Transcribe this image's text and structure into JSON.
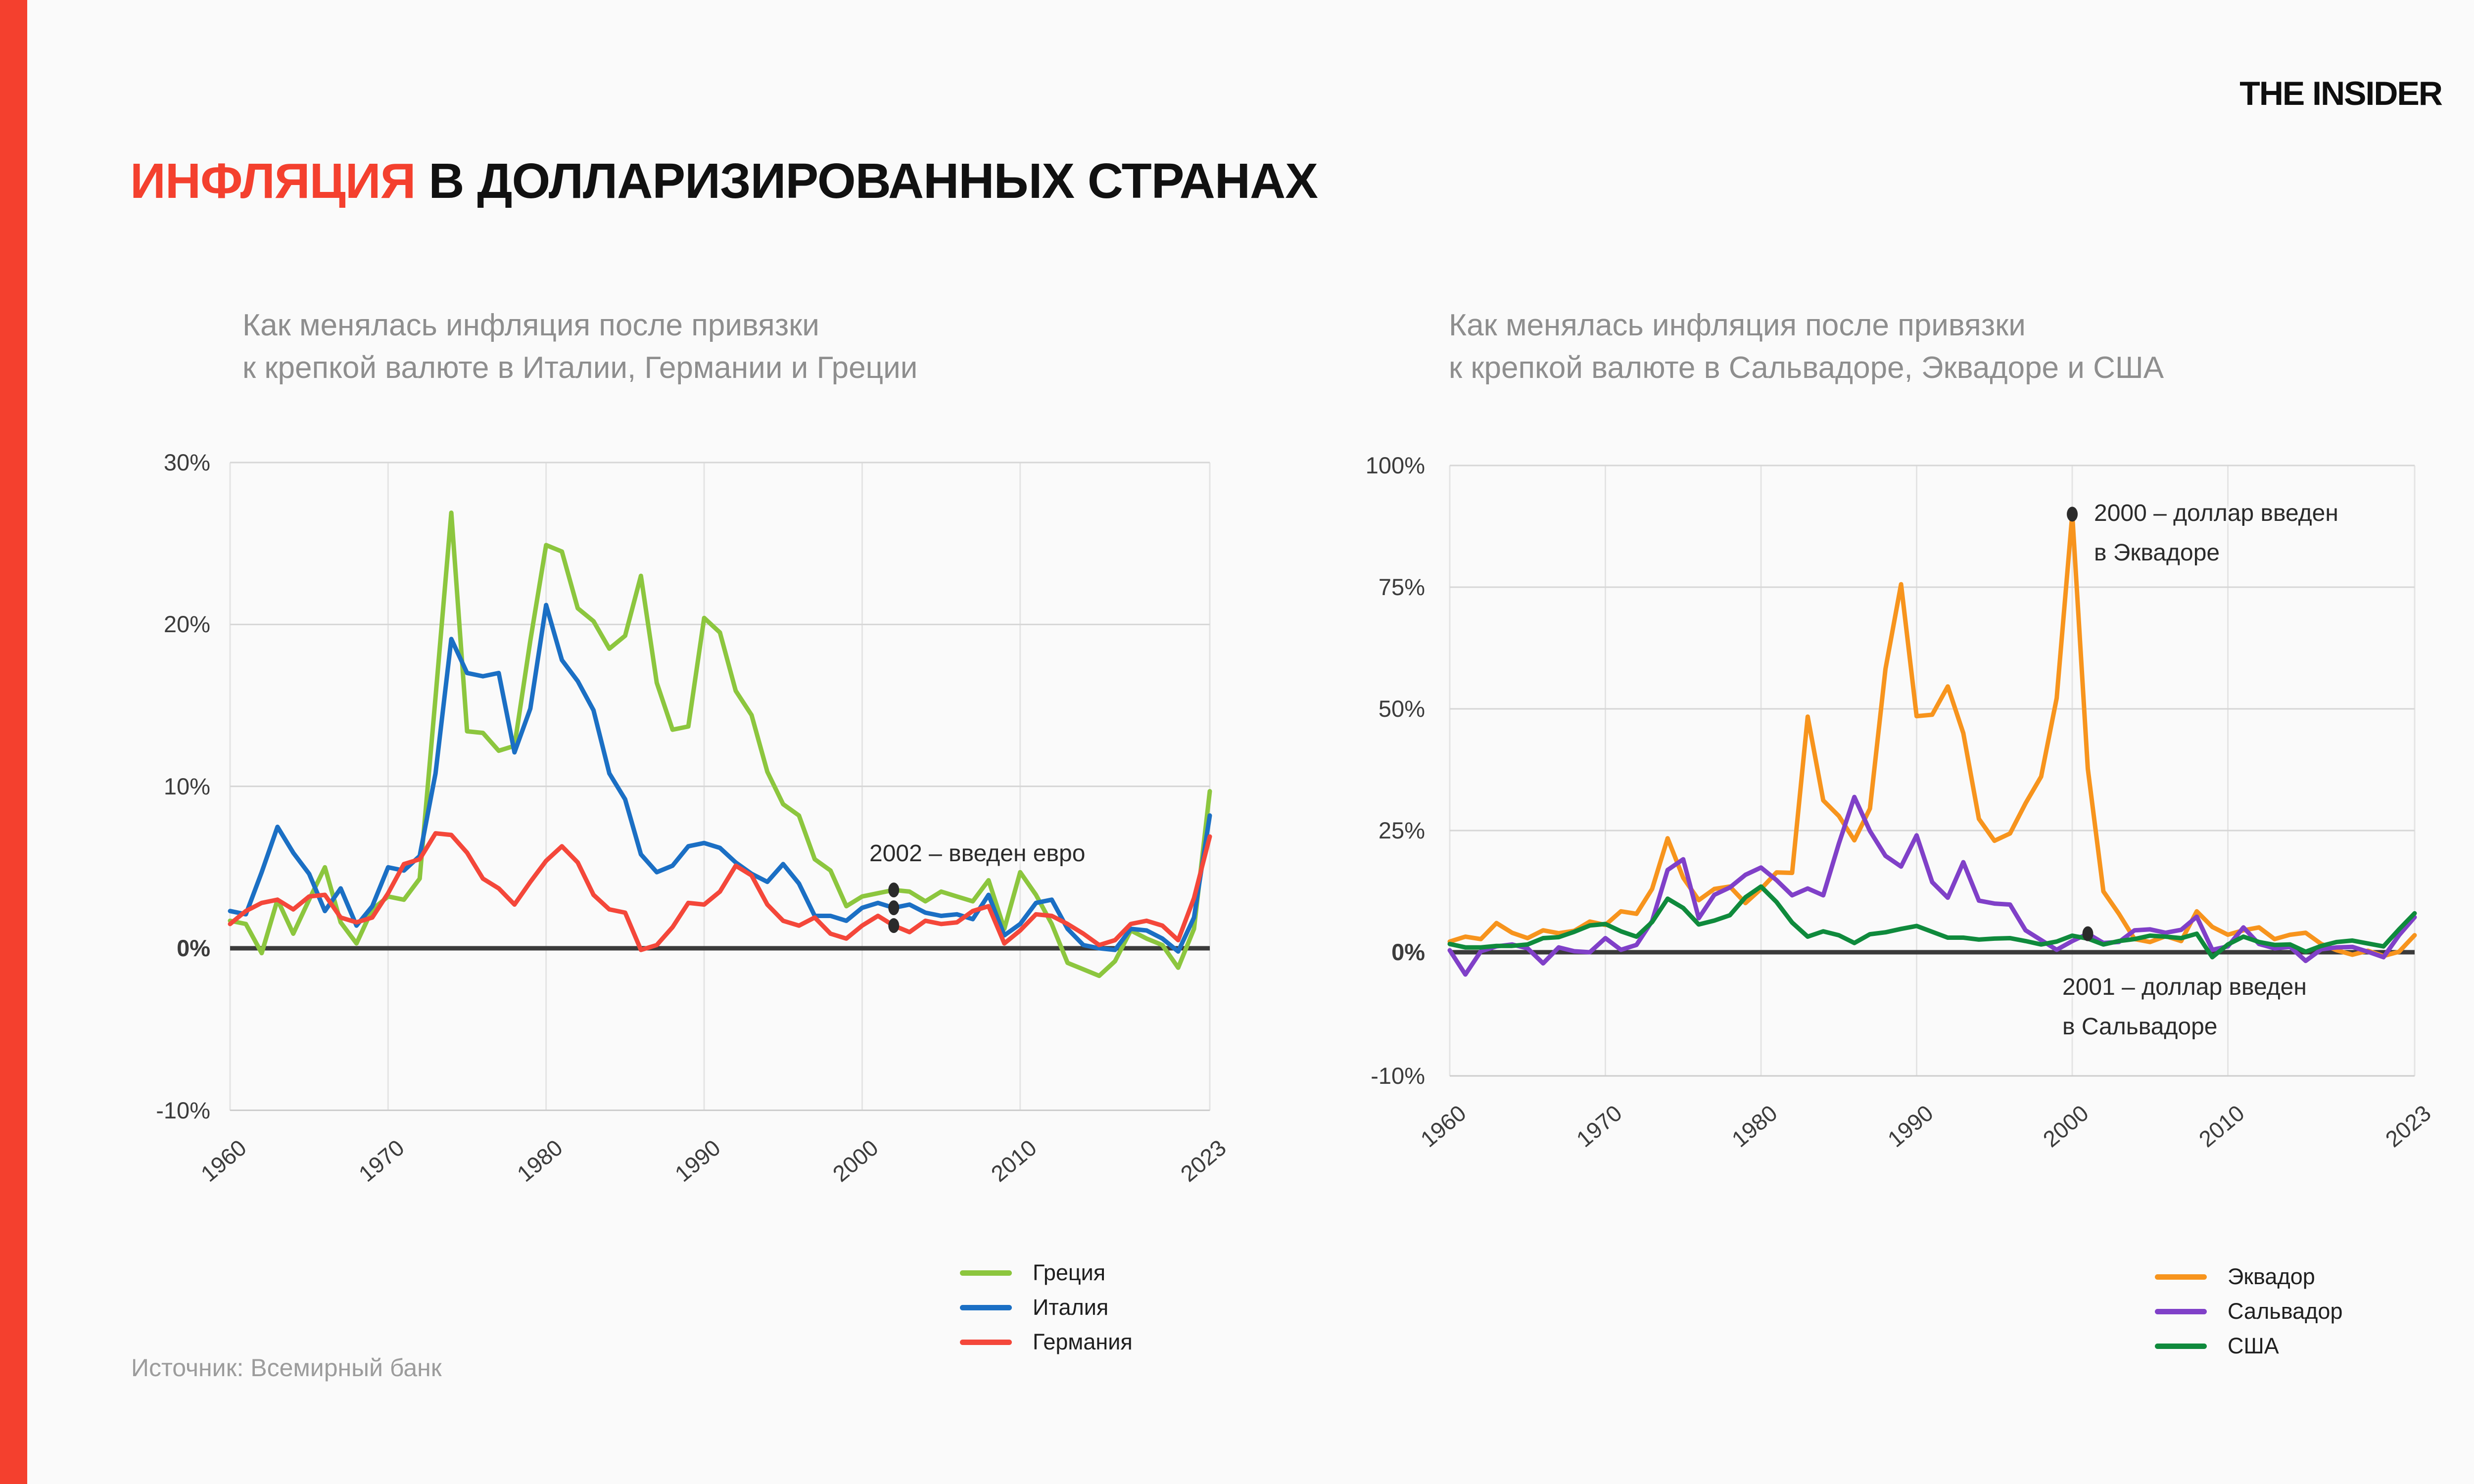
{
  "header": {
    "logo": "THE INSIDER",
    "title_highlight": "ИНФЛЯЦИЯ",
    "title_rest": "В ДОЛЛАРИЗИРОВАННЫХ СТРАНАХ",
    "accent_color": "#F4402E"
  },
  "source": "Источник: Всемирный банк",
  "chart_data": [
    {
      "type": "line",
      "subtitle_line1": "Как менялась инфляция после привязки",
      "subtitle_line2": "к крепкой валюте в Италии, Германии и Греции",
      "unit": "%",
      "ylim": [
        -10,
        30
      ],
      "grid": true,
      "legend_position": "bottom",
      "years": [
        1960,
        1961,
        1962,
        1963,
        1964,
        1965,
        1966,
        1967,
        1968,
        1969,
        1970,
        1971,
        1972,
        1973,
        1974,
        1975,
        1976,
        1977,
        1978,
        1979,
        1980,
        1981,
        1982,
        1983,
        1984,
        1985,
        1986,
        1987,
        1988,
        1989,
        1990,
        1991,
        1992,
        1993,
        1994,
        1995,
        1996,
        1997,
        1998,
        1999,
        2000,
        2001,
        2002,
        2003,
        2004,
        2005,
        2006,
        2007,
        2008,
        2009,
        2010,
        2011,
        2012,
        2013,
        2014,
        2015,
        2016,
        2017,
        2018,
        2019,
        2020,
        2021,
        2022
      ],
      "x_ticks": [
        {
          "label": "1960",
          "year": 1960
        },
        {
          "label": "1970",
          "year": 1970
        },
        {
          "label": "1980",
          "year": 1980
        },
        {
          "label": "1990",
          "year": 1990
        },
        {
          "label": "2000",
          "year": 2000
        },
        {
          "label": "2010",
          "year": 2010
        },
        {
          "label": "2023",
          "year": 2023
        }
      ],
      "y_ticks": [
        {
          "label": "30%",
          "value": 30
        },
        {
          "label": "20%",
          "value": 20
        },
        {
          "label": "10%",
          "value": 10
        },
        {
          "label": "0%",
          "value": 0
        },
        {
          "label": "-10%",
          "value": -10
        }
      ],
      "series": [
        {
          "name": "Греция",
          "color": "#8CC63E",
          "values": [
            1.7,
            1.5,
            -0.3,
            3.0,
            0.9,
            3.0,
            5.0,
            1.6,
            0.3,
            2.4,
            3.2,
            3.0,
            4.3,
            15.5,
            26.9,
            13.4,
            13.3,
            12.2,
            12.5,
            19.0,
            24.9,
            24.5,
            21.0,
            20.2,
            18.5,
            19.3,
            23.0,
            16.4,
            13.5,
            13.7,
            20.4,
            19.5,
            15.9,
            14.4,
            10.9,
            8.9,
            8.2,
            5.5,
            4.8,
            2.6,
            3.2,
            3.4,
            3.6,
            3.5,
            2.9,
            3.5,
            3.2,
            2.9,
            4.2,
            1.2,
            4.7,
            3.3,
            1.5,
            -0.9,
            -1.3,
            -1.7,
            -0.8,
            1.1,
            0.6,
            0.2,
            -1.2,
            1.2,
            9.7
          ]
        },
        {
          "name": "Италия",
          "color": "#1B6FC4",
          "values": [
            2.3,
            2.1,
            4.7,
            7.5,
            5.9,
            4.6,
            2.3,
            3.7,
            1.4,
            2.6,
            5.0,
            4.8,
            5.7,
            10.8,
            19.1,
            17.0,
            16.8,
            17.0,
            12.1,
            14.8,
            21.2,
            17.8,
            16.5,
            14.7,
            10.8,
            9.2,
            5.8,
            4.7,
            5.1,
            6.3,
            6.5,
            6.2,
            5.3,
            4.6,
            4.1,
            5.2,
            4.0,
            2.0,
            2.0,
            1.7,
            2.5,
            2.8,
            2.5,
            2.7,
            2.2,
            2.0,
            2.1,
            1.8,
            3.3,
            0.8,
            1.5,
            2.8,
            3.0,
            1.2,
            0.2,
            0.0,
            -0.1,
            1.2,
            1.1,
            0.6,
            -0.2,
            1.9,
            8.2
          ]
        },
        {
          "name": "Германия",
          "color": "#F4473A",
          "values": [
            1.5,
            2.3,
            2.8,
            3.0,
            2.4,
            3.2,
            3.3,
            1.9,
            1.6,
            1.9,
            3.4,
            5.2,
            5.5,
            7.1,
            7.0,
            5.9,
            4.3,
            3.7,
            2.7,
            4.1,
            5.4,
            6.3,
            5.3,
            3.3,
            2.4,
            2.2,
            -0.1,
            0.2,
            1.3,
            2.8,
            2.7,
            3.5,
            5.1,
            4.5,
            2.7,
            1.7,
            1.4,
            1.9,
            0.9,
            0.6,
            1.4,
            2.0,
            1.4,
            1.0,
            1.7,
            1.5,
            1.6,
            2.3,
            2.6,
            0.3,
            1.1,
            2.1,
            2.0,
            1.5,
            0.9,
            0.2,
            0.5,
            1.5,
            1.7,
            1.4,
            0.5,
            3.1,
            6.9
          ]
        }
      ],
      "annotations": [
        {
          "line1": "2002 – введен евро",
          "line2": "",
          "dots": [
            {
              "year": 2002,
              "value": 3.6
            },
            {
              "year": 2002,
              "value": 2.5
            },
            {
              "year": 2002,
              "value": 1.4
            }
          ]
        }
      ]
    },
    {
      "type": "line",
      "subtitle_line1": "Как менялась инфляция после привязки",
      "subtitle_line2": "к крепкой валюте в Сальвадоре, Эквадоре и США",
      "unit": "%",
      "ylim": [
        -10,
        100
      ],
      "grid": true,
      "legend_position": "bottom",
      "years": [
        1960,
        1961,
        1962,
        1963,
        1964,
        1965,
        1966,
        1967,
        1968,
        1969,
        1970,
        1971,
        1972,
        1973,
        1974,
        1975,
        1976,
        1977,
        1978,
        1979,
        1980,
        1981,
        1982,
        1983,
        1984,
        1985,
        1986,
        1987,
        1988,
        1989,
        1990,
        1991,
        1992,
        1993,
        1994,
        1995,
        1996,
        1997,
        1998,
        1999,
        2000,
        2001,
        2002,
        2003,
        2004,
        2005,
        2006,
        2007,
        2008,
        2009,
        2010,
        2011,
        2012,
        2013,
        2014,
        2015,
        2016,
        2017,
        2018,
        2019,
        2020,
        2021,
        2022
      ],
      "x_ticks": [
        {
          "label": "1960",
          "year": 1960
        },
        {
          "label": "1970",
          "year": 1970
        },
        {
          "label": "1980",
          "year": 1980
        },
        {
          "label": "1990",
          "year": 1990
        },
        {
          "label": "2000",
          "year": 2000
        },
        {
          "label": "2010",
          "year": 2010
        },
        {
          "label": "2023",
          "year": 2023
        }
      ],
      "y_ticks": [
        {
          "label": "100%",
          "value": 100
        },
        {
          "label": "75%",
          "value": 75
        },
        {
          "label": "50%",
          "value": 50
        },
        {
          "label": "25%",
          "value": 25
        },
        {
          "label": "0%",
          "value": 0
        },
        {
          "label": "-10%",
          "value": -10
        }
      ],
      "series": [
        {
          "name": "Эквадор",
          "color": "#F7941D",
          "values": [
            2.2,
            3.2,
            2.7,
            6.0,
            4.0,
            2.9,
            4.5,
            3.9,
            4.4,
            6.3,
            5.6,
            8.4,
            7.9,
            13.0,
            23.4,
            15.3,
            10.7,
            13.0,
            13.5,
            10.1,
            13.0,
            16.4,
            16.3,
            48.4,
            31.2,
            28.0,
            23.0,
            29.5,
            58.2,
            75.6,
            48.5,
            48.8,
            54.6,
            45.0,
            27.4,
            22.9,
            24.4,
            30.6,
            36.1,
            52.2,
            90.0,
            37.7,
            12.5,
            7.9,
            2.7,
            2.1,
            3.3,
            2.3,
            8.4,
            5.2,
            3.6,
            4.5,
            5.1,
            2.7,
            3.6,
            4.0,
            1.7,
            0.4,
            -0.2,
            0.3,
            -0.3,
            0.1,
            3.5
          ]
        },
        {
          "name": "Сальвадор",
          "color": "#8040C8",
          "values": [
            0.4,
            -1.8,
            0.2,
            1.2,
            1.6,
            0.8,
            -0.9,
            1.0,
            0.2,
            0.0,
            2.9,
            0.5,
            1.5,
            6.4,
            16.9,
            19.1,
            7.0,
            11.8,
            13.3,
            15.9,
            17.4,
            14.8,
            11.7,
            13.1,
            11.7,
            22.3,
            31.9,
            24.9,
            19.8,
            17.6,
            24.0,
            14.4,
            11.2,
            18.5,
            10.6,
            10.0,
            9.8,
            4.5,
            2.5,
            0.5,
            2.3,
            3.8,
            1.9,
            2.1,
            4.5,
            4.7,
            4.0,
            4.6,
            7.3,
            0.5,
            1.2,
            5.1,
            1.7,
            0.8,
            1.1,
            -0.7,
            0.6,
            1.0,
            1.1,
            0.1,
            -0.4,
            3.5,
            7.2
          ]
        },
        {
          "name": "США",
          "color": "#0F8A3C",
          "values": [
            1.7,
            1.0,
            1.0,
            1.3,
            1.3,
            1.6,
            2.9,
            3.1,
            4.2,
            5.5,
            5.8,
            4.3,
            3.2,
            6.2,
            11.0,
            9.1,
            5.7,
            6.5,
            7.6,
            11.3,
            13.5,
            10.3,
            6.1,
            3.2,
            4.3,
            3.5,
            1.9,
            3.7,
            4.1,
            4.8,
            5.4,
            4.2,
            3.0,
            3.0,
            2.6,
            2.8,
            2.9,
            2.3,
            1.6,
            2.2,
            3.4,
            2.8,
            1.6,
            2.3,
            2.7,
            3.4,
            3.2,
            2.9,
            3.8,
            -0.4,
            1.6,
            3.2,
            2.1,
            1.5,
            1.6,
            0.1,
            1.3,
            2.1,
            2.4,
            1.8,
            1.2,
            4.7,
            8.0
          ]
        }
      ],
      "annotations": [
        {
          "line1": "2000 – доллар введен",
          "line2": "в Эквадоре",
          "dots": [
            {
              "year": 2000,
              "value": 90
            }
          ]
        },
        {
          "line1": "2001 – доллар введен",
          "line2": "в Сальвадоре",
          "dots": [
            {
              "year": 2001,
              "value": 3.8
            }
          ]
        }
      ]
    }
  ]
}
